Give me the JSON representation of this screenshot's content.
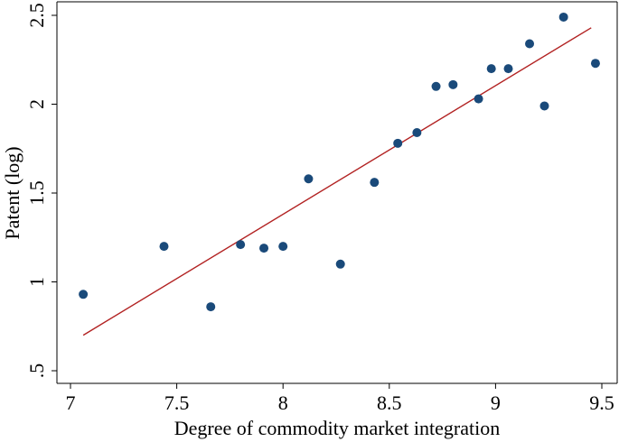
{
  "chart_data": {
    "type": "scatter",
    "xlabel": "Degree of commodity market integration",
    "ylabel": "Patent (log)",
    "xlim": [
      7,
      9.5
    ],
    "ylim": [
      0.5,
      2.5
    ],
    "xticks": [
      {
        "value": 7,
        "label": "7"
      },
      {
        "value": 7.5,
        "label": "7.5"
      },
      {
        "value": 8,
        "label": "8"
      },
      {
        "value": 8.5,
        "label": "8.5"
      },
      {
        "value": 9,
        "label": "9"
      },
      {
        "value": 9.5,
        "label": "9.5"
      }
    ],
    "yticks": [
      {
        "value": 0.5,
        "label": ".5"
      },
      {
        "value": 1,
        "label": "1"
      },
      {
        "value": 1.5,
        "label": "1.5"
      },
      {
        "value": 2,
        "label": "2"
      },
      {
        "value": 2.5,
        "label": "2.5"
      }
    ],
    "grid": false,
    "legend": "none",
    "series": [
      {
        "type": "scatter",
        "color": "#1a4a7a",
        "points": [
          {
            "x": 7.06,
            "y": 0.93
          },
          {
            "x": 7.44,
            "y": 1.2
          },
          {
            "x": 7.66,
            "y": 0.86
          },
          {
            "x": 7.8,
            "y": 1.21
          },
          {
            "x": 7.91,
            "y": 1.19
          },
          {
            "x": 8.0,
            "y": 1.2
          },
          {
            "x": 8.12,
            "y": 1.58
          },
          {
            "x": 8.27,
            "y": 1.1
          },
          {
            "x": 8.43,
            "y": 1.56
          },
          {
            "x": 8.54,
            "y": 1.78
          },
          {
            "x": 8.63,
            "y": 1.84
          },
          {
            "x": 8.72,
            "y": 2.1
          },
          {
            "x": 8.8,
            "y": 2.11
          },
          {
            "x": 8.92,
            "y": 2.03
          },
          {
            "x": 8.98,
            "y": 2.2
          },
          {
            "x": 9.06,
            "y": 2.2
          },
          {
            "x": 9.16,
            "y": 2.34
          },
          {
            "x": 9.23,
            "y": 1.99
          },
          {
            "x": 9.32,
            "y": 2.49
          },
          {
            "x": 9.47,
            "y": 2.23
          }
        ]
      },
      {
        "type": "line",
        "color": "#b22222",
        "points": [
          {
            "x": 7.06,
            "y": 0.7
          },
          {
            "x": 9.45,
            "y": 2.43
          }
        ]
      }
    ]
  }
}
